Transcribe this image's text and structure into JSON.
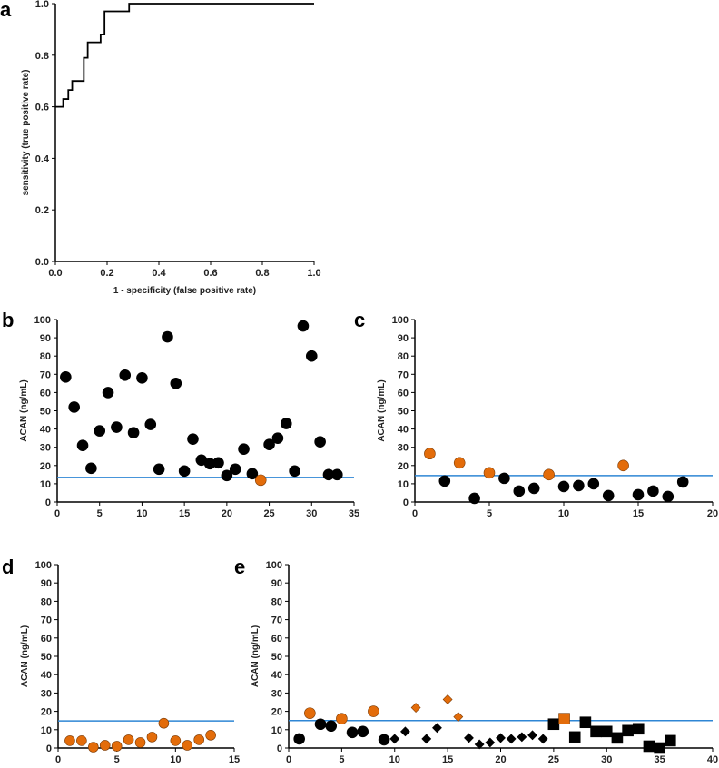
{
  "colors": {
    "black": "#000000",
    "orange": "#E36C0A",
    "threshold": "#2E86D4"
  },
  "chart_data": [
    {
      "panel": "a",
      "type": "line",
      "xlabel": "1 - specificity (false positive rate)",
      "ylabel": "sensitivity (true positive rate)",
      "xlim": [
        0,
        1
      ],
      "ylim": [
        0,
        1
      ],
      "xticks": [
        "0.0",
        "0.2",
        "0.4",
        "0.6",
        "0.8",
        "1.0"
      ],
      "yticks": [
        "0.0",
        "0.2",
        "0.4",
        "0.6",
        "0.8",
        "1.0"
      ],
      "x": [
        0,
        0.03,
        0.03,
        0.05,
        0.05,
        0.065,
        0.065,
        0.11,
        0.11,
        0.125,
        0.125,
        0.175,
        0.175,
        0.19,
        0.19,
        0.285,
        0.285,
        1.0
      ],
      "y": [
        0.6,
        0.6,
        0.63,
        0.63,
        0.665,
        0.665,
        0.7,
        0.7,
        0.79,
        0.79,
        0.85,
        0.85,
        0.88,
        0.88,
        0.97,
        0.97,
        1.0,
        1.0
      ]
    },
    {
      "panel": "b",
      "type": "scatter",
      "ylabel": "ACAN (ng/mL)",
      "xlim": [
        0,
        35
      ],
      "ylim": [
        0,
        100
      ],
      "xstep": 5,
      "threshold": 13.5,
      "xticks": [
        "0",
        "5",
        "10",
        "15",
        "20",
        "25",
        "30",
        "35"
      ],
      "yticks": [
        "0",
        "10",
        "20",
        "30",
        "40",
        "50",
        "60",
        "70",
        "80",
        "90",
        "100"
      ],
      "points": [
        [
          1,
          68.5,
          "circle",
          "black"
        ],
        [
          2,
          52,
          "circle",
          "black"
        ],
        [
          3,
          31,
          "circle",
          "black"
        ],
        [
          4,
          18.5,
          "circle",
          "black"
        ],
        [
          5,
          39,
          "circle",
          "black"
        ],
        [
          6,
          60,
          "circle",
          "black"
        ],
        [
          7,
          41,
          "circle",
          "black"
        ],
        [
          8,
          69.5,
          "circle",
          "black"
        ],
        [
          9,
          38,
          "circle",
          "black"
        ],
        [
          10,
          68,
          "circle",
          "black"
        ],
        [
          11,
          42.5,
          "circle",
          "black"
        ],
        [
          12,
          18,
          "circle",
          "black"
        ],
        [
          13,
          90.5,
          "circle",
          "black"
        ],
        [
          14,
          65,
          "circle",
          "black"
        ],
        [
          15,
          17,
          "circle",
          "black"
        ],
        [
          16,
          34.5,
          "circle",
          "black"
        ],
        [
          17,
          23,
          "circle",
          "black"
        ],
        [
          18,
          21,
          "circle",
          "black"
        ],
        [
          19,
          21.5,
          "circle",
          "black"
        ],
        [
          20,
          14.5,
          "circle",
          "black"
        ],
        [
          21,
          18,
          "circle",
          "black"
        ],
        [
          22,
          29,
          "circle",
          "black"
        ],
        [
          23,
          15.5,
          "circle",
          "black"
        ],
        [
          24,
          12,
          "circle",
          "orange"
        ],
        [
          25,
          31.5,
          "circle",
          "black"
        ],
        [
          26,
          35,
          "circle",
          "black"
        ],
        [
          27,
          43,
          "circle",
          "black"
        ],
        [
          28,
          17,
          "circle",
          "black"
        ],
        [
          29,
          96.5,
          "circle",
          "black"
        ],
        [
          30,
          80,
          "circle",
          "black"
        ],
        [
          31,
          33,
          "circle",
          "black"
        ],
        [
          32,
          15,
          "circle",
          "black"
        ],
        [
          33,
          15,
          "circle",
          "black"
        ]
      ]
    },
    {
      "panel": "c",
      "type": "scatter",
      "ylabel": "ACAN (ng/mL)",
      "xlim": [
        0,
        20
      ],
      "ylim": [
        0,
        100
      ],
      "xstep": 5,
      "threshold": 14.5,
      "xticks": [
        "0",
        "5",
        "10",
        "15",
        "20"
      ],
      "yticks": [
        "0",
        "10",
        "20",
        "30",
        "40",
        "50",
        "60",
        "70",
        "80",
        "90",
        "100"
      ],
      "points": [
        [
          1,
          26.5,
          "circle",
          "orange"
        ],
        [
          2,
          11.5,
          "circle",
          "black"
        ],
        [
          3,
          21.5,
          "circle",
          "orange"
        ],
        [
          4,
          2,
          "circle",
          "black"
        ],
        [
          5,
          16,
          "circle",
          "orange"
        ],
        [
          6,
          13,
          "circle",
          "black"
        ],
        [
          7,
          6,
          "circle",
          "black"
        ],
        [
          8,
          7.5,
          "circle",
          "black"
        ],
        [
          9,
          15,
          "circle",
          "orange"
        ],
        [
          10,
          8.5,
          "circle",
          "black"
        ],
        [
          11,
          9,
          "circle",
          "black"
        ],
        [
          12,
          10,
          "circle",
          "black"
        ],
        [
          13,
          3.5,
          "circle",
          "black"
        ],
        [
          14,
          20,
          "circle",
          "orange"
        ],
        [
          15,
          4,
          "circle",
          "black"
        ],
        [
          16,
          6,
          "circle",
          "black"
        ],
        [
          17,
          3,
          "circle",
          "black"
        ],
        [
          18,
          11,
          "circle",
          "black"
        ]
      ]
    },
    {
      "panel": "d",
      "type": "scatter",
      "ylabel": "ACAN (ng/mL)",
      "xlim": [
        0,
        15
      ],
      "ylim": [
        0,
        100
      ],
      "xstep": 5,
      "threshold": 14.8,
      "xticks": [
        "0",
        "5",
        "10",
        "15"
      ],
      "yticks": [
        "0",
        "10",
        "20",
        "30",
        "40",
        "50",
        "60",
        "70",
        "80",
        "90",
        "100"
      ],
      "points": [
        [
          1,
          4,
          "circle",
          "orange"
        ],
        [
          2,
          4,
          "circle",
          "orange"
        ],
        [
          3,
          0.5,
          "circle",
          "orange"
        ],
        [
          4,
          1.5,
          "circle",
          "orange"
        ],
        [
          5,
          1,
          "circle",
          "orange"
        ],
        [
          6,
          4.5,
          "circle",
          "orange"
        ],
        [
          7,
          3,
          "circle",
          "orange"
        ],
        [
          8,
          6,
          "circle",
          "orange"
        ],
        [
          9,
          13.5,
          "circle",
          "orange"
        ],
        [
          10,
          4,
          "circle",
          "orange"
        ],
        [
          11,
          1.5,
          "circle",
          "orange"
        ],
        [
          12,
          4.5,
          "circle",
          "orange"
        ],
        [
          13,
          7,
          "circle",
          "orange"
        ]
      ]
    },
    {
      "panel": "e",
      "type": "scatter",
      "ylabel": "ACAN (ng/mL)",
      "xlim": [
        0,
        40
      ],
      "ylim": [
        0,
        100
      ],
      "xstep": 5,
      "threshold": 15,
      "xticks": [
        "0",
        "5",
        "10",
        "15",
        "20",
        "25",
        "30",
        "35",
        "40"
      ],
      "yticks": [
        "0",
        "10",
        "20",
        "30",
        "40",
        "50",
        "60",
        "70",
        "80",
        "90",
        "100"
      ],
      "points": [
        [
          1,
          5,
          "circle",
          "black"
        ],
        [
          2,
          19,
          "circle",
          "orange"
        ],
        [
          3,
          13,
          "circle",
          "black"
        ],
        [
          4,
          12,
          "circle",
          "black"
        ],
        [
          5,
          16,
          "circle",
          "orange"
        ],
        [
          6,
          8.5,
          "circle",
          "black"
        ],
        [
          7,
          9,
          "circle",
          "black"
        ],
        [
          8,
          20,
          "circle",
          "orange"
        ],
        [
          9,
          4.5,
          "circle",
          "black"
        ],
        [
          10,
          5,
          "diamond",
          "black"
        ],
        [
          11,
          9,
          "diamond",
          "black"
        ],
        [
          12,
          22,
          "diamond",
          "orange"
        ],
        [
          13,
          5,
          "diamond",
          "black"
        ],
        [
          14,
          11,
          "diamond",
          "black"
        ],
        [
          15,
          26.5,
          "diamond",
          "orange"
        ],
        [
          16,
          17,
          "diamond",
          "orange"
        ],
        [
          17,
          5.5,
          "diamond",
          "black"
        ],
        [
          18,
          2,
          "diamond",
          "black"
        ],
        [
          19,
          3,
          "diamond",
          "black"
        ],
        [
          20,
          5.5,
          "diamond",
          "black"
        ],
        [
          21,
          5,
          "diamond",
          "black"
        ],
        [
          22,
          6,
          "diamond",
          "black"
        ],
        [
          23,
          7,
          "diamond",
          "black"
        ],
        [
          24,
          5,
          "diamond",
          "black"
        ],
        [
          25,
          13,
          "square",
          "black"
        ],
        [
          26,
          16,
          "square",
          "orange"
        ],
        [
          27,
          6,
          "square",
          "black"
        ],
        [
          28,
          14,
          "square",
          "black"
        ],
        [
          29,
          9,
          "square",
          "black"
        ],
        [
          30,
          9,
          "square",
          "black"
        ],
        [
          31,
          5.5,
          "square",
          "black"
        ],
        [
          32,
          9.5,
          "square",
          "black"
        ],
        [
          33,
          10.5,
          "square",
          "black"
        ],
        [
          34,
          1,
          "square",
          "black"
        ],
        [
          35,
          0,
          "square",
          "black"
        ],
        [
          36,
          4,
          "square",
          "black"
        ]
      ]
    }
  ]
}
